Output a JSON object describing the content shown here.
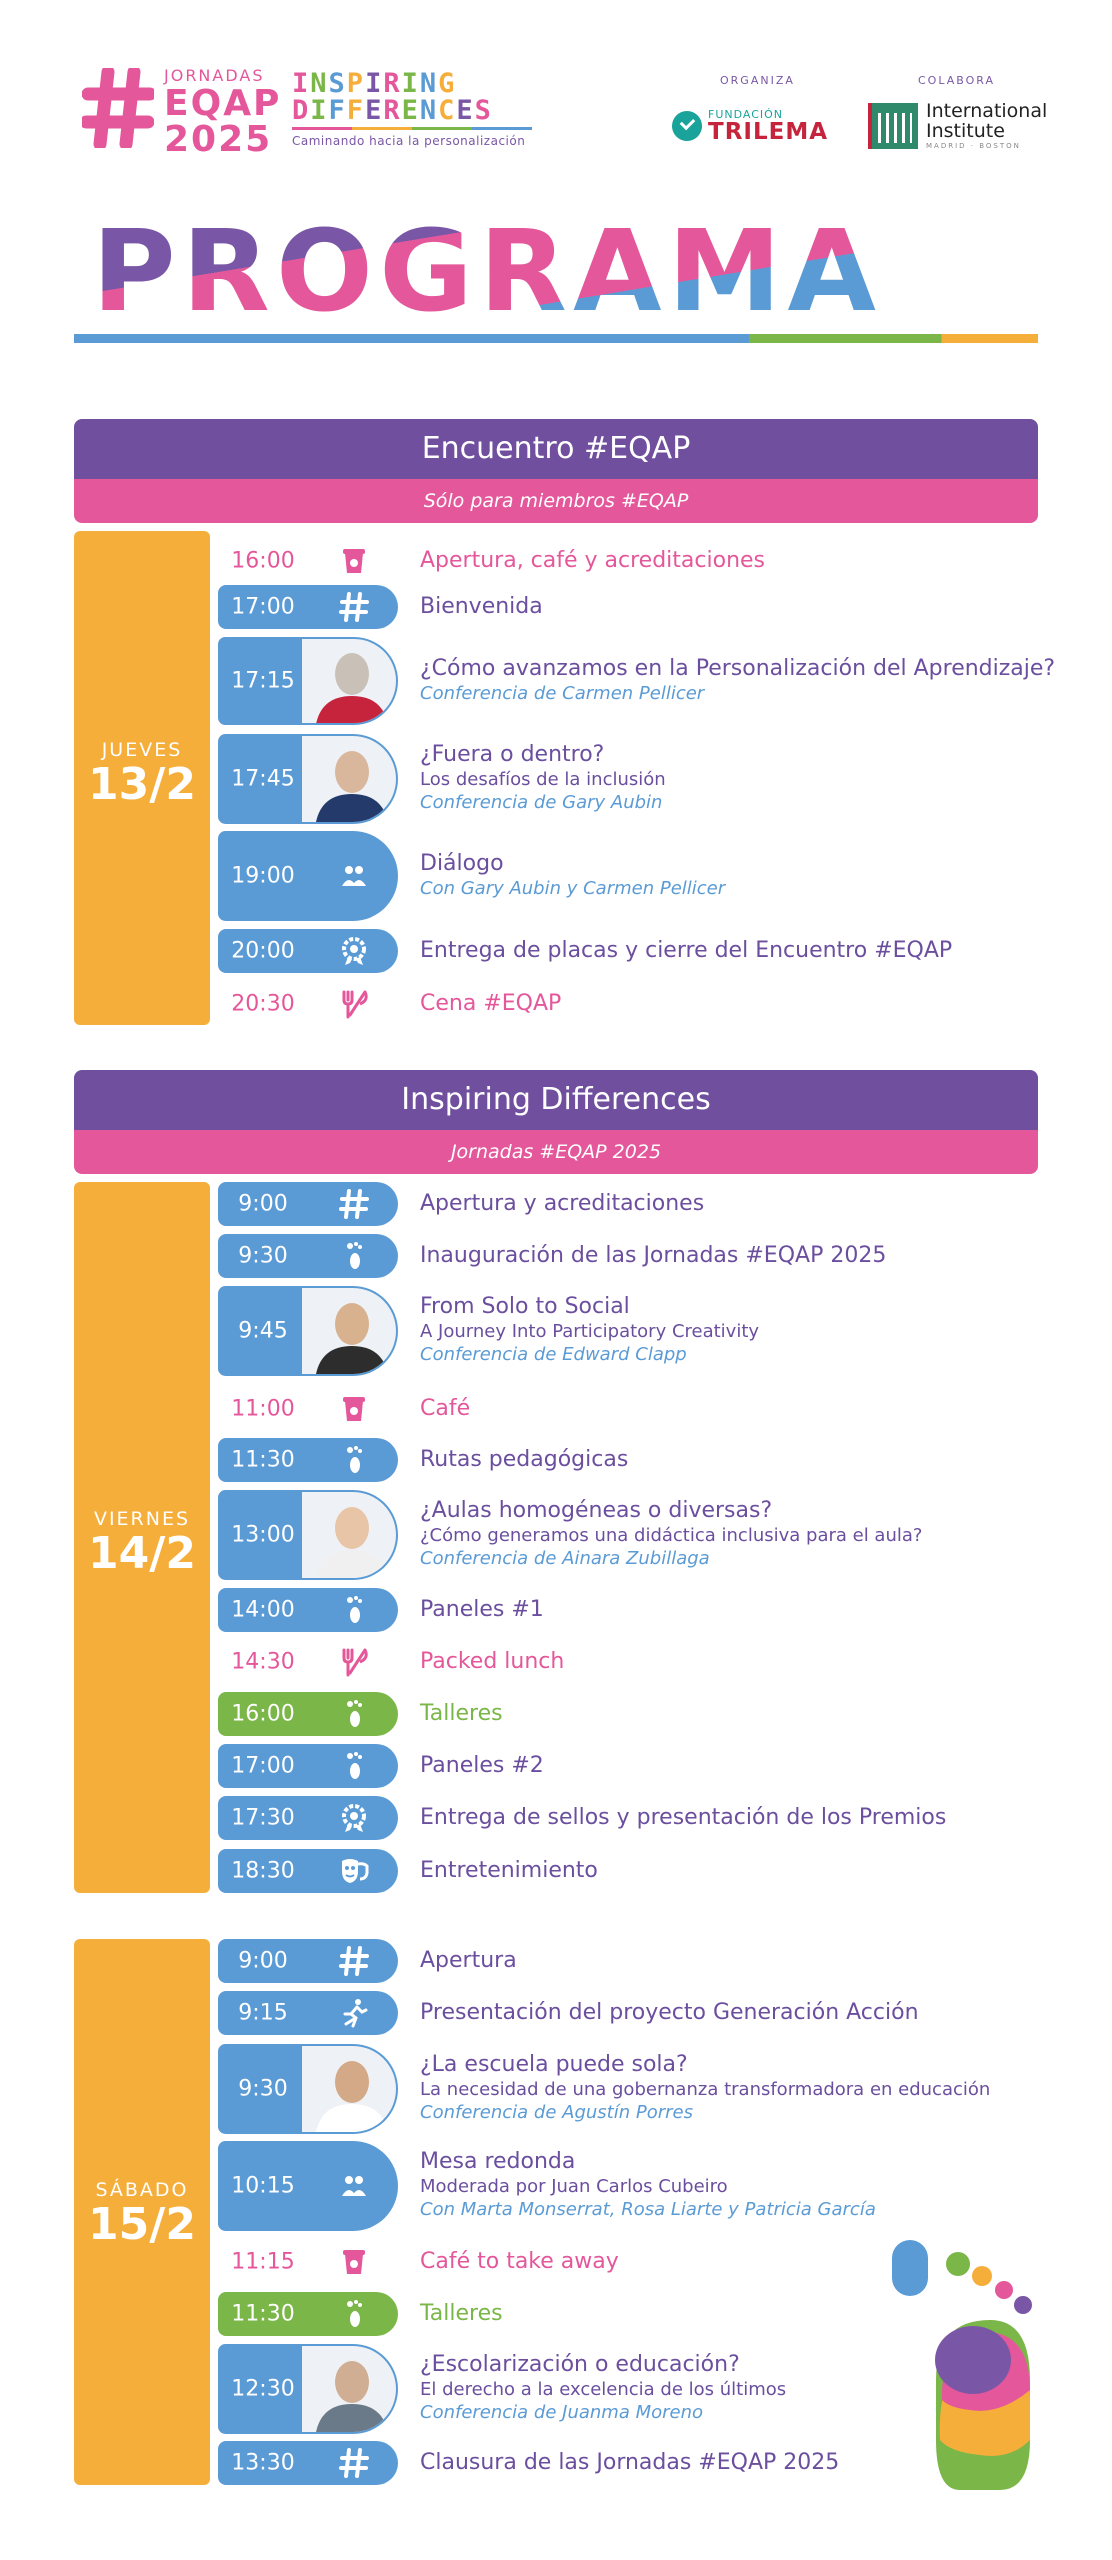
{
  "header": {
    "jornadas": "JORNADAS",
    "eqap": "EQAP",
    "year": "2025",
    "inspiring": "INSPIRING",
    "differences": "DIFFERENCES",
    "tagline": "Caminando hacia la personalización",
    "organiza_label": "ORGANIZA",
    "colabora_label": "COLABORA",
    "trilema_small": "FUNDACIÓN",
    "trilema_name": "TRILEMA",
    "intl_line1": "International",
    "intl_line2": "Institute",
    "intl_sub": "MADRID · BOSTON"
  },
  "title": "PROGRAMA",
  "colors": {
    "purple": "#6f4f9e",
    "pink": "#e4579a",
    "blue": "#5b9bd5",
    "orange": "#f6ae3b",
    "green": "#7ab648"
  },
  "sections": [
    {
      "title": "Encuentro #EQAP",
      "subtitle": "Sólo para miembros #EQAP"
    },
    {
      "title": "Inspiring Differences",
      "subtitle": "Jornadas #EQAP 2025"
    }
  ],
  "days": [
    {
      "name": "JUEVES",
      "date": "13/2"
    },
    {
      "name": "VIERNES",
      "date": "14/2"
    },
    {
      "name": "SÁBADO",
      "date": "15/2"
    }
  ],
  "events": [
    {
      "time": "16:00",
      "icon": "coffee-cup-icon",
      "title": "Apertura, café y acreditaciones"
    },
    {
      "time": "17:00",
      "icon": "hashtag-icon",
      "title": "Bienvenida"
    },
    {
      "time": "17:15",
      "icon": "speaker-photo",
      "title": "¿Cómo avanzamos en la Personalización del Aprendizaje?",
      "credit": "Conferencia de Carmen Pellicer"
    },
    {
      "time": "17:45",
      "icon": "speaker-photo",
      "title": "¿Fuera o dentro?",
      "subtitle": "Los desafíos de la inclusión",
      "credit": "Conferencia de Gary Aubin"
    },
    {
      "time": "19:00",
      "icon": "people-icon",
      "title": "Diálogo",
      "credit": "Con Gary Aubin y Carmen Pellicer"
    },
    {
      "time": "20:00",
      "icon": "award-badge-icon",
      "title": "Entrega de placas y cierre del Encuentro #EQAP"
    },
    {
      "time": "20:30",
      "icon": "cutlery-icon",
      "title": "Cena #EQAP"
    },
    {
      "time": "9:00",
      "icon": "hashtag-icon",
      "title": "Apertura y acreditaciones"
    },
    {
      "time": "9:30",
      "icon": "footprint-icon",
      "title": "Inauguración de las Jornadas #EQAP 2025"
    },
    {
      "time": "9:45",
      "icon": "speaker-photo",
      "title": "From Solo to Social",
      "subtitle": "A Journey Into Participatory Creativity",
      "credit": "Conferencia de Edward Clapp"
    },
    {
      "time": "11:00",
      "icon": "coffee-cup-icon",
      "title": "Café"
    },
    {
      "time": "11:30",
      "icon": "footprint-icon",
      "title": "Rutas pedagógicas"
    },
    {
      "time": "13:00",
      "icon": "speaker-photo",
      "title": "¿Aulas homogéneas o diversas?",
      "subtitle": "¿Cómo generamos una didáctica inclusiva para el aula?",
      "credit": "Conferencia de Ainara Zubillaga"
    },
    {
      "time": "14:00",
      "icon": "footprint-icon",
      "title": "Paneles #1"
    },
    {
      "time": "14:30",
      "icon": "cutlery-icon",
      "title": "Packed lunch"
    },
    {
      "time": "16:00",
      "icon": "footprint-icon",
      "title": "Talleres"
    },
    {
      "time": "17:00",
      "icon": "footprint-icon",
      "title": "Paneles #2"
    },
    {
      "time": "17:30",
      "icon": "award-badge-icon",
      "title": "Entrega de sellos y presentación de los Premios"
    },
    {
      "time": "18:30",
      "icon": "theater-mask-icon",
      "title": "Entretenimiento"
    },
    {
      "time": "9:00",
      "icon": "hashtag-icon",
      "title": "Apertura"
    },
    {
      "time": "9:15",
      "icon": "runner-icon",
      "title": "Presentación del proyecto Generación Acción"
    },
    {
      "time": "9:30",
      "icon": "speaker-photo",
      "title": "¿La escuela puede sola?",
      "subtitle": "La necesidad de una gobernanza transformadora en educación",
      "credit": "Conferencia de Agustín Porres"
    },
    {
      "time": "10:15",
      "icon": "people-icon",
      "title": "Mesa redonda",
      "subtitle": "Moderada por Juan Carlos Cubeiro",
      "credit": "Con Marta Monserrat, Rosa Liarte y Patricia García"
    },
    {
      "time": "11:15",
      "icon": "coffee-cup-icon",
      "title": "Café to take away"
    },
    {
      "time": "11:30",
      "icon": "footprint-icon",
      "title": "Talleres"
    },
    {
      "time": "12:30",
      "icon": "speaker-photo",
      "title": "¿Escolarización o educación?",
      "subtitle": "El derecho a la excelencia de los últimos",
      "credit": "Conferencia de Juanma Moreno"
    },
    {
      "time": "13:30",
      "icon": "hashtag-icon",
      "title": "Clausura de las Jornadas #EQAP 2025"
    }
  ]
}
